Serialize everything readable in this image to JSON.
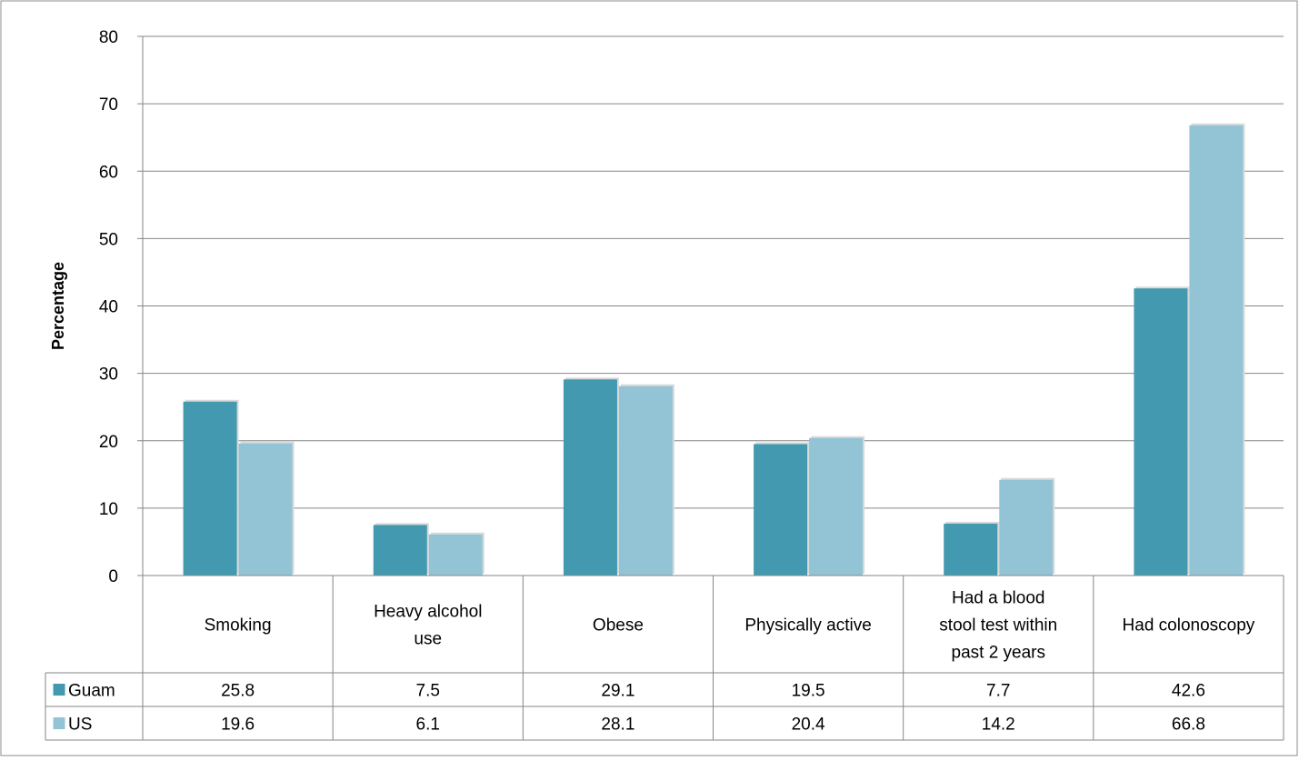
{
  "chart_data": {
    "type": "bar",
    "ylabel": "Percentage",
    "ylim": [
      0,
      80
    ],
    "yticks": [
      0,
      10,
      20,
      30,
      40,
      50,
      60,
      70,
      80
    ],
    "grid": true,
    "legend": "data-table",
    "categories": [
      [
        "Smoking"
      ],
      [
        "Heavy alcohol",
        "use"
      ],
      [
        "Obese"
      ],
      [
        "Physically active"
      ],
      [
        "Had a blood",
        "stool test within",
        "past 2 years"
      ],
      [
        "Had colonoscopy"
      ]
    ],
    "series": [
      {
        "name": "Guam",
        "color": "#4299b0",
        "values": [
          "25.8",
          "7.5",
          "29.1",
          "19.5",
          "7.7",
          "42.6"
        ]
      },
      {
        "name": "US",
        "color": "#93c4d6",
        "values": [
          "19.6",
          "6.1",
          "28.1",
          "20.4",
          "14.2",
          "66.8"
        ]
      }
    ]
  }
}
